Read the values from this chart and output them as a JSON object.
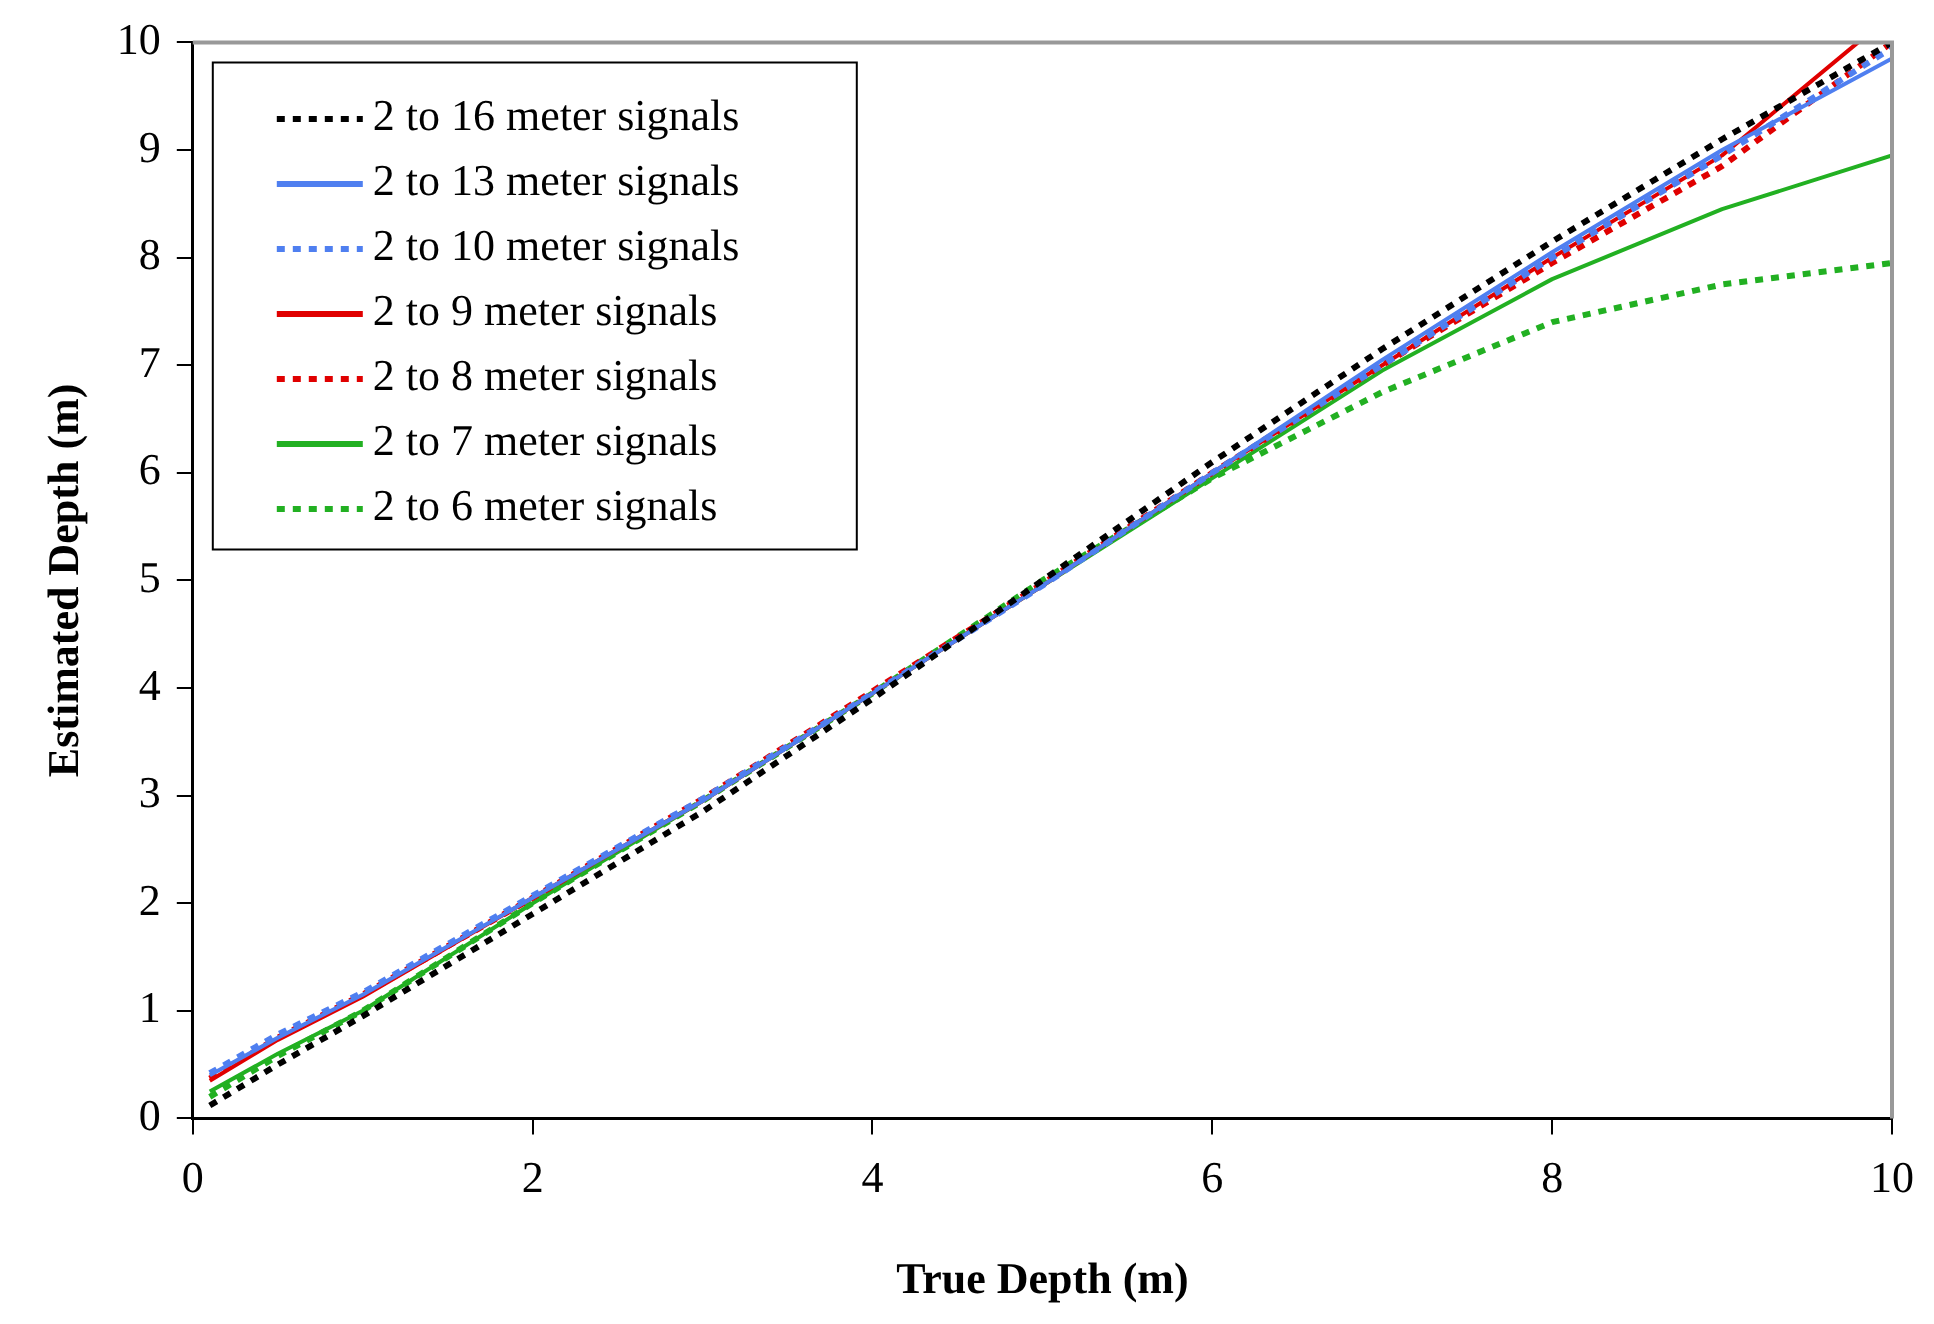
{
  "chart_data": {
    "type": "line",
    "xlabel": "True Depth (m)",
    "ylabel": "Estimated Depth (m)",
    "xlim": [
      0,
      10
    ],
    "xticks": [
      0,
      2,
      4,
      6,
      8,
      10
    ],
    "ylim": [
      0,
      10
    ],
    "yticks": [
      0,
      1,
      2,
      3,
      4,
      5,
      6,
      7,
      8,
      9,
      10
    ],
    "grid": false,
    "legend": "top left",
    "marker": "none",
    "x": [
      0.1,
      0.5,
      1,
      2,
      3,
      4,
      5,
      6,
      7,
      8,
      9,
      10
    ],
    "series": [
      {
        "name": "2 to 16 meter signals",
        "color": "#000000",
        "line_style": "dotted",
        "values": [
          0.12,
          0.5,
          0.95,
          1.9,
          2.85,
          3.9,
          5.0,
          6.1,
          7.15,
          8.15,
          9.1,
          10
        ]
      },
      {
        "name": "2 to 13 meter signals",
        "color": "#4f7ff0",
        "line_style": "solid",
        "values": [
          0.4,
          0.75,
          1.15,
          2.05,
          2.95,
          3.95,
          4.95,
          6.0,
          7.05,
          8.05,
          9.0,
          9.85
        ]
      },
      {
        "name": "2 to 10 meter signals",
        "color": "#4f7ff0",
        "line_style": "dotted",
        "values": [
          0.42,
          0.78,
          1.17,
          2.07,
          2.97,
          3.95,
          4.95,
          6.0,
          7.0,
          8.0,
          8.95,
          9.95
        ]
      },
      {
        "name": "2 to 9 meter signals",
        "color": "#e00000",
        "line_style": "solid",
        "x": [
          0.1,
          0.5,
          1,
          2,
          3,
          4,
          5,
          6,
          7,
          8,
          9,
          9.8
        ],
        "values": [
          0.35,
          0.73,
          1.13,
          2.05,
          2.95,
          3.95,
          4.95,
          6.0,
          7.0,
          8.0,
          8.95,
          10
        ]
      },
      {
        "name": "2 to 8 meter signals",
        "color": "#e00000",
        "line_style": "dotted",
        "values": [
          0.37,
          0.75,
          1.15,
          2.05,
          2.97,
          3.97,
          4.97,
          6.0,
          7.0,
          7.95,
          8.85,
          10
        ]
      },
      {
        "name": "2 to 7 meter signals",
        "color": "#22b022",
        "line_style": "solid",
        "values": [
          0.25,
          0.6,
          1.0,
          2.0,
          2.95,
          3.95,
          4.95,
          5.95,
          6.95,
          7.8,
          8.45,
          8.95
        ]
      },
      {
        "name": "2 to 6 meter signals",
        "color": "#22b022",
        "line_style": "dotted",
        "values": [
          0.2,
          0.58,
          1.0,
          2.0,
          2.95,
          3.95,
          5.0,
          5.95,
          6.75,
          7.4,
          7.75,
          7.95
        ]
      }
    ]
  }
}
